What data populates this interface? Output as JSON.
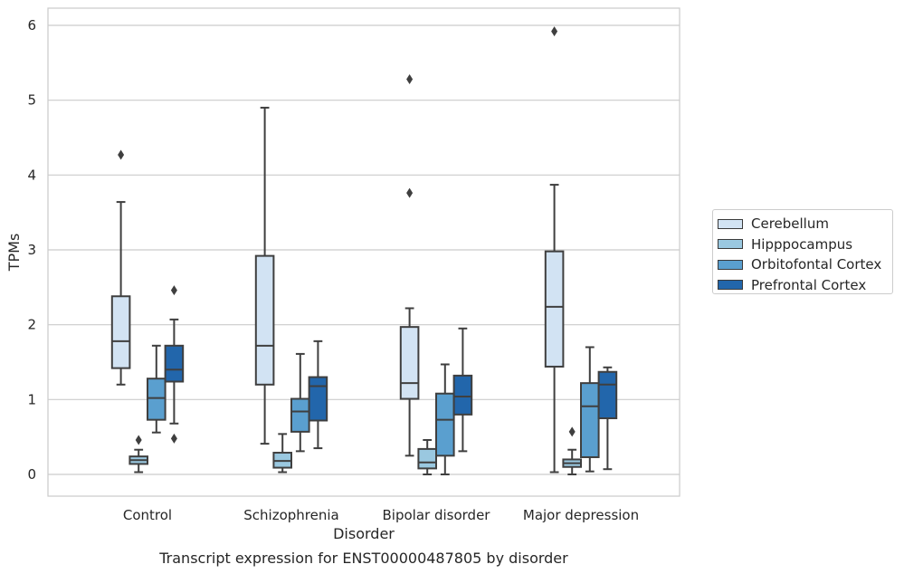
{
  "chart_data": {
    "type": "box",
    "title": "Transcript expression for ENST00000487805 by disorder",
    "xlabel": "Disorder",
    "ylabel": "TPMs",
    "ylim": [
      -0.28,
      6.22
    ],
    "yticks": [
      0,
      1,
      2,
      3,
      4,
      5,
      6
    ],
    "categories": [
      "Control",
      "Schizophrenia",
      "Bipolar disorder",
      "Major depression"
    ],
    "grid": "horizontal",
    "legend_position": "right",
    "series": [
      {
        "name": "Cerebellum",
        "color": "#d2e3f3",
        "boxes": [
          {
            "whislo": 1.2,
            "q1": 1.42,
            "med": 1.78,
            "q3": 2.38,
            "whishi": 3.64,
            "fliers": [
              4.27
            ]
          },
          {
            "whislo": 0.41,
            "q1": 1.2,
            "med": 1.72,
            "q3": 2.92,
            "whishi": 4.9,
            "fliers": []
          },
          {
            "whislo": 0.25,
            "q1": 1.01,
            "med": 1.22,
            "q3": 1.97,
            "whishi": 2.22,
            "fliers": [
              3.76,
              5.28
            ]
          },
          {
            "whislo": 0.03,
            "q1": 1.44,
            "med": 2.24,
            "q3": 2.98,
            "whishi": 3.87,
            "fliers": [
              5.92
            ]
          }
        ]
      },
      {
        "name": "Hipppocampus",
        "color": "#9ac8e0",
        "boxes": [
          {
            "whislo": 0.03,
            "q1": 0.14,
            "med": 0.19,
            "q3": 0.24,
            "whishi": 0.33,
            "fliers": [
              0.46
            ]
          },
          {
            "whislo": 0.03,
            "q1": 0.09,
            "med": 0.18,
            "q3": 0.29,
            "whishi": 0.54,
            "fliers": []
          },
          {
            "whislo": 0.0,
            "q1": 0.08,
            "med": 0.16,
            "q3": 0.34,
            "whishi": 0.46,
            "fliers": []
          },
          {
            "whislo": 0.0,
            "q1": 0.1,
            "med": 0.15,
            "q3": 0.2,
            "whishi": 0.33,
            "fliers": [
              0.57
            ]
          }
        ]
      },
      {
        "name": "Orbitofontal Cortex",
        "color": "#5a9fcf",
        "boxes": [
          {
            "whislo": 0.56,
            "q1": 0.73,
            "med": 1.02,
            "q3": 1.28,
            "whishi": 1.72,
            "fliers": []
          },
          {
            "whislo": 0.31,
            "q1": 0.57,
            "med": 0.84,
            "q3": 1.01,
            "whishi": 1.61,
            "fliers": []
          },
          {
            "whislo": 0.0,
            "q1": 0.25,
            "med": 0.73,
            "q3": 1.08,
            "whishi": 1.47,
            "fliers": []
          },
          {
            "whislo": 0.04,
            "q1": 0.23,
            "med": 0.91,
            "q3": 1.22,
            "whishi": 1.7,
            "fliers": []
          }
        ]
      },
      {
        "name": "Prefrontal Cortex",
        "color": "#2266ab",
        "boxes": [
          {
            "whislo": 0.68,
            "q1": 1.24,
            "med": 1.4,
            "q3": 1.72,
            "whishi": 2.07,
            "fliers": [
              0.48,
              2.46
            ]
          },
          {
            "whislo": 0.35,
            "q1": 0.72,
            "med": 1.18,
            "q3": 1.3,
            "whishi": 1.78,
            "fliers": []
          },
          {
            "whislo": 0.31,
            "q1": 0.8,
            "med": 1.04,
            "q3": 1.32,
            "whishi": 1.95,
            "fliers": []
          },
          {
            "whislo": 0.07,
            "q1": 0.75,
            "med": 1.2,
            "q3": 1.37,
            "whishi": 1.43,
            "fliers": []
          }
        ]
      }
    ]
  }
}
